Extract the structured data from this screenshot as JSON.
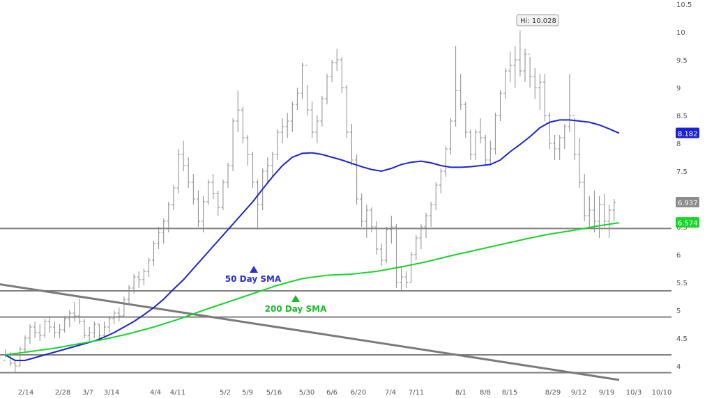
{
  "chart_data": {
    "type": "line",
    "ylim": [
      3.85,
      10.55
    ],
    "y_ticks": [
      "4",
      "4.5",
      "5",
      "5.5",
      "6",
      "6.5",
      "7",
      "7.5",
      "8",
      "8.5",
      "9",
      "9.5",
      "10",
      "10.5"
    ],
    "x_ticks": [
      "2/14",
      "2/28",
      "3/7",
      "3/14",
      "4/4",
      "4/11",
      "5/2",
      "5/9",
      "5/16",
      "5/30",
      "6/6",
      "6/20",
      "7/4",
      "7/11",
      "8/1",
      "8/8",
      "8/15",
      "8/29",
      "9/12",
      "9/19",
      "10/3",
      "10/10"
    ],
    "high_label": "Hi: 10.028",
    "price_bars": [
      [
        4.3,
        4.15,
        4.1,
        4.2
      ],
      [
        4.25,
        4.0,
        4.2,
        4.05
      ],
      [
        4.1,
        3.88,
        4.05,
        4.0
      ],
      [
        4.35,
        4.0,
        4.0,
        4.3
      ],
      [
        4.55,
        4.25,
        4.3,
        4.5
      ],
      [
        4.75,
        4.4,
        4.5,
        4.7
      ],
      [
        4.8,
        4.5,
        4.7,
        4.6
      ],
      [
        4.75,
        4.45,
        4.6,
        4.55
      ],
      [
        4.85,
        4.5,
        4.55,
        4.8
      ],
      [
        4.9,
        4.6,
        4.8,
        4.7
      ],
      [
        4.8,
        4.5,
        4.7,
        4.6
      ],
      [
        4.75,
        4.5,
        4.6,
        4.65
      ],
      [
        4.9,
        4.6,
        4.65,
        4.85
      ],
      [
        5.0,
        4.7,
        4.85,
        4.95
      ],
      [
        5.15,
        4.8,
        4.95,
        4.9
      ],
      [
        5.2,
        4.75,
        4.9,
        4.8
      ],
      [
        4.85,
        4.5,
        4.8,
        4.55
      ],
      [
        4.7,
        4.45,
        4.55,
        4.6
      ],
      [
        4.8,
        4.5,
        4.6,
        4.75
      ],
      [
        4.75,
        4.45,
        4.75,
        4.55
      ],
      [
        4.8,
        4.5,
        4.55,
        4.7
      ],
      [
        4.9,
        4.6,
        4.7,
        4.85
      ],
      [
        5.0,
        4.75,
        4.85,
        4.95
      ],
      [
        5.05,
        4.8,
        4.95,
        4.9
      ],
      [
        5.25,
        4.9,
        4.9,
        5.2
      ],
      [
        5.45,
        5.1,
        5.2,
        5.4
      ],
      [
        5.65,
        5.3,
        5.4,
        5.6
      ],
      [
        5.7,
        5.4,
        5.6,
        5.55
      ],
      [
        5.75,
        5.45,
        5.55,
        5.7
      ],
      [
        5.95,
        5.6,
        5.7,
        5.9
      ],
      [
        6.25,
        5.8,
        5.9,
        6.2
      ],
      [
        6.5,
        6.1,
        6.2,
        6.4
      ],
      [
        6.65,
        6.2,
        6.4,
        6.6
      ],
      [
        6.95,
        6.4,
        6.6,
        6.9
      ],
      [
        7.25,
        6.8,
        6.9,
        7.2
      ],
      [
        7.9,
        7.1,
        7.2,
        7.8
      ],
      [
        8.05,
        7.5,
        7.8,
        7.6
      ],
      [
        7.75,
        7.2,
        7.6,
        7.3
      ],
      [
        7.45,
        6.9,
        7.3,
        7.0
      ],
      [
        7.15,
        6.5,
        7.0,
        6.6
      ],
      [
        7.05,
        6.4,
        6.6,
        6.95
      ],
      [
        7.35,
        6.9,
        6.95,
        7.3
      ],
      [
        7.45,
        7.0,
        7.3,
        7.1
      ],
      [
        7.15,
        6.7,
        7.1,
        6.85
      ],
      [
        7.35,
        6.8,
        6.85,
        7.3
      ],
      [
        7.65,
        7.2,
        7.3,
        7.6
      ],
      [
        8.45,
        7.5,
        7.6,
        8.4
      ],
      [
        8.95,
        8.2,
        8.4,
        8.6
      ],
      [
        8.65,
        8.0,
        8.6,
        8.1
      ],
      [
        8.15,
        7.6,
        8.1,
        7.8
      ],
      [
        7.85,
        7.2,
        7.8,
        7.3
      ],
      [
        7.35,
        6.45,
        7.3,
        6.9
      ],
      [
        7.55,
        6.8,
        6.9,
        7.5
      ],
      [
        7.75,
        7.3,
        7.5,
        7.6
      ],
      [
        7.85,
        7.4,
        7.6,
        7.8
      ],
      [
        8.25,
        7.7,
        7.8,
        8.2
      ],
      [
        8.45,
        8.0,
        8.2,
        8.3
      ],
      [
        8.55,
        8.1,
        8.3,
        8.4
      ],
      [
        8.75,
        8.2,
        8.4,
        8.7
      ],
      [
        9.0,
        8.6,
        8.7,
        8.9
      ],
      [
        9.45,
        8.8,
        8.9,
        9.4
      ],
      [
        9.05,
        8.5,
        9.4,
        8.6
      ],
      [
        8.75,
        8.1,
        8.6,
        8.2
      ],
      [
        8.5,
        8.0,
        8.2,
        8.4
      ],
      [
        8.85,
        8.3,
        8.4,
        8.8
      ],
      [
        9.25,
        8.7,
        8.8,
        9.2
      ],
      [
        9.5,
        9.1,
        9.2,
        9.45
      ],
      [
        9.7,
        9.3,
        9.45,
        9.5
      ],
      [
        9.55,
        8.9,
        9.5,
        9.0
      ],
      [
        9.05,
        8.1,
        9.0,
        8.2
      ],
      [
        8.35,
        7.6,
        8.2,
        7.7
      ],
      [
        7.8,
        6.9,
        7.7,
        7.0
      ],
      [
        7.1,
        6.5,
        7.0,
        6.6
      ],
      [
        6.9,
        6.3,
        6.6,
        6.8
      ],
      [
        6.85,
        6.4,
        6.8,
        6.5
      ],
      [
        6.6,
        6.0,
        6.5,
        6.1
      ],
      [
        6.2,
        5.8,
        6.1,
        5.9
      ],
      [
        6.5,
        5.85,
        5.9,
        6.45
      ],
      [
        6.7,
        6.2,
        6.45,
        6.5
      ],
      [
        6.55,
        5.4,
        6.5,
        5.5
      ],
      [
        5.8,
        5.35,
        5.5,
        5.6
      ],
      [
        5.7,
        5.4,
        5.6,
        5.5
      ],
      [
        6.05,
        5.5,
        5.5,
        6.0
      ],
      [
        6.35,
        5.9,
        6.0,
        6.3
      ],
      [
        6.55,
        6.1,
        6.3,
        6.5
      ],
      [
        6.75,
        6.3,
        6.5,
        6.7
      ],
      [
        6.95,
        6.5,
        6.7,
        6.9
      ],
      [
        7.3,
        6.8,
        6.9,
        7.25
      ],
      [
        7.55,
        7.1,
        7.25,
        7.5
      ],
      [
        7.95,
        7.4,
        7.5,
        7.9
      ],
      [
        8.45,
        7.8,
        7.9,
        8.4
      ],
      [
        9.75,
        8.3,
        8.4,
        8.95
      ],
      [
        9.25,
        8.6,
        8.95,
        8.7
      ],
      [
        8.75,
        8.1,
        8.7,
        8.2
      ],
      [
        8.25,
        7.7,
        8.2,
        7.8
      ],
      [
        8.25,
        7.7,
        7.8,
        8.2
      ],
      [
        8.45,
        8.0,
        8.2,
        8.1
      ],
      [
        8.15,
        7.6,
        8.1,
        7.7
      ],
      [
        8.05,
        7.6,
        7.7,
        7.9
      ],
      [
        8.55,
        7.8,
        7.9,
        8.5
      ],
      [
        8.95,
        8.4,
        8.5,
        8.9
      ],
      [
        9.35,
        8.8,
        8.9,
        9.3
      ],
      [
        9.65,
        9.1,
        9.3,
        9.4
      ],
      [
        9.75,
        9.0,
        9.4,
        9.5
      ],
      [
        10.03,
        9.2,
        9.5,
        9.3
      ],
      [
        9.7,
        9.1,
        9.3,
        9.6
      ],
      [
        9.55,
        9.0,
        9.6,
        9.2
      ],
      [
        9.35,
        8.8,
        9.2,
        9.0
      ],
      [
        9.25,
        8.6,
        9.0,
        9.1
      ],
      [
        9.25,
        8.4,
        9.1,
        8.5
      ],
      [
        8.55,
        7.9,
        8.5,
        8.0
      ],
      [
        8.15,
        7.7,
        8.0,
        7.9
      ],
      [
        8.15,
        7.7,
        7.9,
        8.1
      ],
      [
        8.35,
        7.9,
        8.1,
        8.3
      ],
      [
        9.25,
        8.2,
        8.3,
        8.5
      ],
      [
        8.45,
        7.7,
        8.5,
        7.8
      ],
      [
        8.1,
        7.2,
        7.8,
        7.3
      ],
      [
        7.45,
        6.6,
        7.3,
        6.7
      ],
      [
        7.05,
        6.5,
        6.7,
        6.8
      ],
      [
        7.15,
        6.4,
        6.8,
        6.6
      ],
      [
        7.05,
        6.3,
        6.6,
        6.9
      ],
      [
        7.1,
        6.5,
        6.9,
        6.6
      ],
      [
        6.9,
        6.3,
        6.6,
        6.8
      ],
      [
        7.0,
        6.6,
        6.8,
        6.937
      ]
    ],
    "series": [
      {
        "name": "50 Day SMA",
        "color": "#1b22d6",
        "x": [
          0,
          2,
          4,
          6,
          8,
          10,
          12,
          14,
          16,
          18,
          20,
          22,
          24,
          26,
          28,
          30,
          32,
          34,
          36,
          38,
          40,
          42,
          44,
          46,
          48,
          50,
          52,
          54,
          56,
          58,
          60,
          62,
          64,
          66,
          68,
          70,
          72,
          74,
          76,
          78,
          80,
          82,
          84,
          86,
          88,
          90,
          92,
          94,
          96,
          98,
          100,
          102,
          104,
          106,
          108,
          110,
          112,
          114,
          116,
          118,
          120,
          122,
          124
        ],
        "values": [
          4.2,
          4.1,
          4.1,
          4.15,
          4.2,
          4.25,
          4.3,
          4.35,
          4.4,
          4.45,
          4.52,
          4.6,
          4.7,
          4.8,
          4.92,
          5.05,
          5.2,
          5.38,
          5.55,
          5.75,
          5.95,
          6.15,
          6.35,
          6.55,
          6.75,
          6.95,
          7.18,
          7.4,
          7.6,
          7.75,
          7.82,
          7.83,
          7.8,
          7.75,
          7.7,
          7.64,
          7.58,
          7.53,
          7.5,
          7.55,
          7.62,
          7.66,
          7.68,
          7.65,
          7.6,
          7.57,
          7.57,
          7.58,
          7.6,
          7.62,
          7.7,
          7.85,
          7.98,
          8.12,
          8.28,
          8.38,
          8.42,
          8.42,
          8.4,
          8.38,
          8.33,
          8.26,
          8.182
        ]
      },
      {
        "name": "200 Day SMA",
        "color": "#19d42a",
        "x": [
          0,
          5,
          10,
          15,
          20,
          25,
          30,
          35,
          40,
          45,
          50,
          55,
          60,
          65,
          70,
          75,
          80,
          85,
          90,
          95,
          100,
          105,
          110,
          115,
          120,
          124
        ],
        "values": [
          4.2,
          4.26,
          4.32,
          4.4,
          4.48,
          4.58,
          4.7,
          4.84,
          5.0,
          5.15,
          5.3,
          5.45,
          5.57,
          5.63,
          5.65,
          5.7,
          5.78,
          5.87,
          5.98,
          6.08,
          6.18,
          6.28,
          6.37,
          6.44,
          6.52,
          6.574
        ]
      }
    ],
    "price_tag": "6.937",
    "ma50_tag": "8.182",
    "ma200_tag": "6.574",
    "annotations": [
      {
        "text": "50 Day SMA",
        "color": "#2a2fd1"
      },
      {
        "text": "200 Day SMA",
        "color": "#1fb82c"
      }
    ],
    "horizontal_levels": [
      6.47,
      5.35,
      4.88,
      4.2,
      3.88
    ],
    "trendline": {
      "from_bar": -2,
      "from_value": 5.48,
      "to_bar": 124,
      "to_value": 3.75
    },
    "colors": {
      "bars": "#8a8a8a",
      "levels": "#808080",
      "trendline": "#7a7a7a",
      "ma50": "#1b22d6",
      "ma200": "#19d42a"
    }
  }
}
